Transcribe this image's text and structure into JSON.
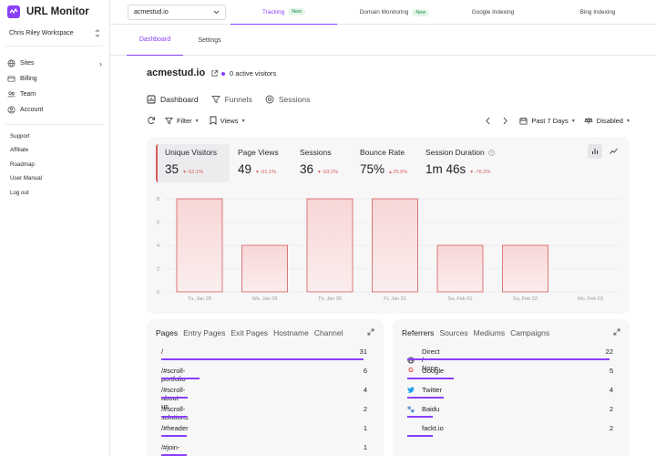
{
  "app": {
    "title": "URL Monitor",
    "workspace": "Chris Riley Workspace",
    "accent": "#8a3ffc"
  },
  "sidebar": {
    "items": [
      {
        "label": "Sites",
        "icon": "globe-icon"
      },
      {
        "label": "Billing",
        "icon": "credit-card-icon"
      },
      {
        "label": "Team",
        "icon": "team-icon"
      },
      {
        "label": "Account",
        "icon": "user-icon"
      }
    ],
    "links": [
      "Support",
      "Affiliate",
      "Roadmap",
      "User Manual",
      "Log out"
    ]
  },
  "topbar": {
    "site_select": "acmestud.io",
    "tabs": [
      {
        "label": "Tracking",
        "badge": "New"
      },
      {
        "label": "Domain Monitoring",
        "badge": "New"
      },
      {
        "label": "Google Indexing",
        "badge": ""
      },
      {
        "label": "Bing Indexing",
        "badge": ""
      }
    ]
  },
  "subtabs": [
    "Dashboard",
    "Settings"
  ],
  "header": {
    "site": "acmestud.io",
    "visitors": "0 active visitors"
  },
  "views": [
    "Dashboard",
    "Funnels",
    "Sessions"
  ],
  "toolbar": {
    "filter": "Filter",
    "views": "Views",
    "range": "Past 7 Days",
    "status": "Disabled"
  },
  "stats": [
    {
      "label": "Unique Visitors",
      "value": "35",
      "change": "-62.1%"
    },
    {
      "label": "Page Views",
      "value": "49",
      "change": "-61.1%"
    },
    {
      "label": "Sessions",
      "value": "36",
      "change": "-53.2%"
    },
    {
      "label": "Bounce Rate",
      "value": "75%",
      "change": "25.5%"
    },
    {
      "label": "Session Duration",
      "value": "1m 46s",
      "change": "-76.2%"
    }
  ],
  "chart_data": {
    "type": "bar",
    "categories": [
      "Tu, Jan 28",
      "We, Jan 29",
      "Th, Jan 30",
      "Fr, Jan 31",
      "Sa, Feb 01",
      "Su, Feb 02",
      "Mo, Feb 03"
    ],
    "values": [
      8,
      4,
      8,
      8,
      4,
      4,
      0
    ],
    "yticks": [
      "0",
      "2",
      "4",
      "6",
      "8"
    ],
    "ylim": [
      0,
      8
    ],
    "bar_color": "#d65a5a",
    "grid": true
  },
  "pages": {
    "tabs": [
      "Pages",
      "Entry Pages",
      "Exit Pages",
      "Hostname",
      "Channel"
    ],
    "rows": [
      {
        "label": "/",
        "count": "31",
        "share": 1.0
      },
      {
        "label": "/#scroll-portfolio",
        "count": "6",
        "share": 0.19
      },
      {
        "label": "/#scroll-about-us",
        "count": "4",
        "share": 0.13
      },
      {
        "label": "/#scroll-solutions",
        "count": "2",
        "share": 0.065
      },
      {
        "label": "/#header",
        "count": "1",
        "share": 0.032
      },
      {
        "label": "/#join-us",
        "count": "1",
        "share": 0.032
      }
    ]
  },
  "referrers": {
    "tabs": [
      "Referrers",
      "Sources",
      "Mediums",
      "Campaigns"
    ],
    "rows": [
      {
        "label": "Direct / None",
        "count": "22",
        "share": 1.0,
        "icon": "globe-icon"
      },
      {
        "label": "Google",
        "count": "5",
        "share": 0.23,
        "icon": "google-icon"
      },
      {
        "label": "Twitter",
        "count": "4",
        "share": 0.18,
        "icon": "twitter-icon"
      },
      {
        "label": "Baidu",
        "count": "2",
        "share": 0.09,
        "icon": "baidu-icon"
      },
      {
        "label": "fackt.io",
        "count": "2",
        "share": 0.09,
        "icon": ""
      }
    ]
  }
}
